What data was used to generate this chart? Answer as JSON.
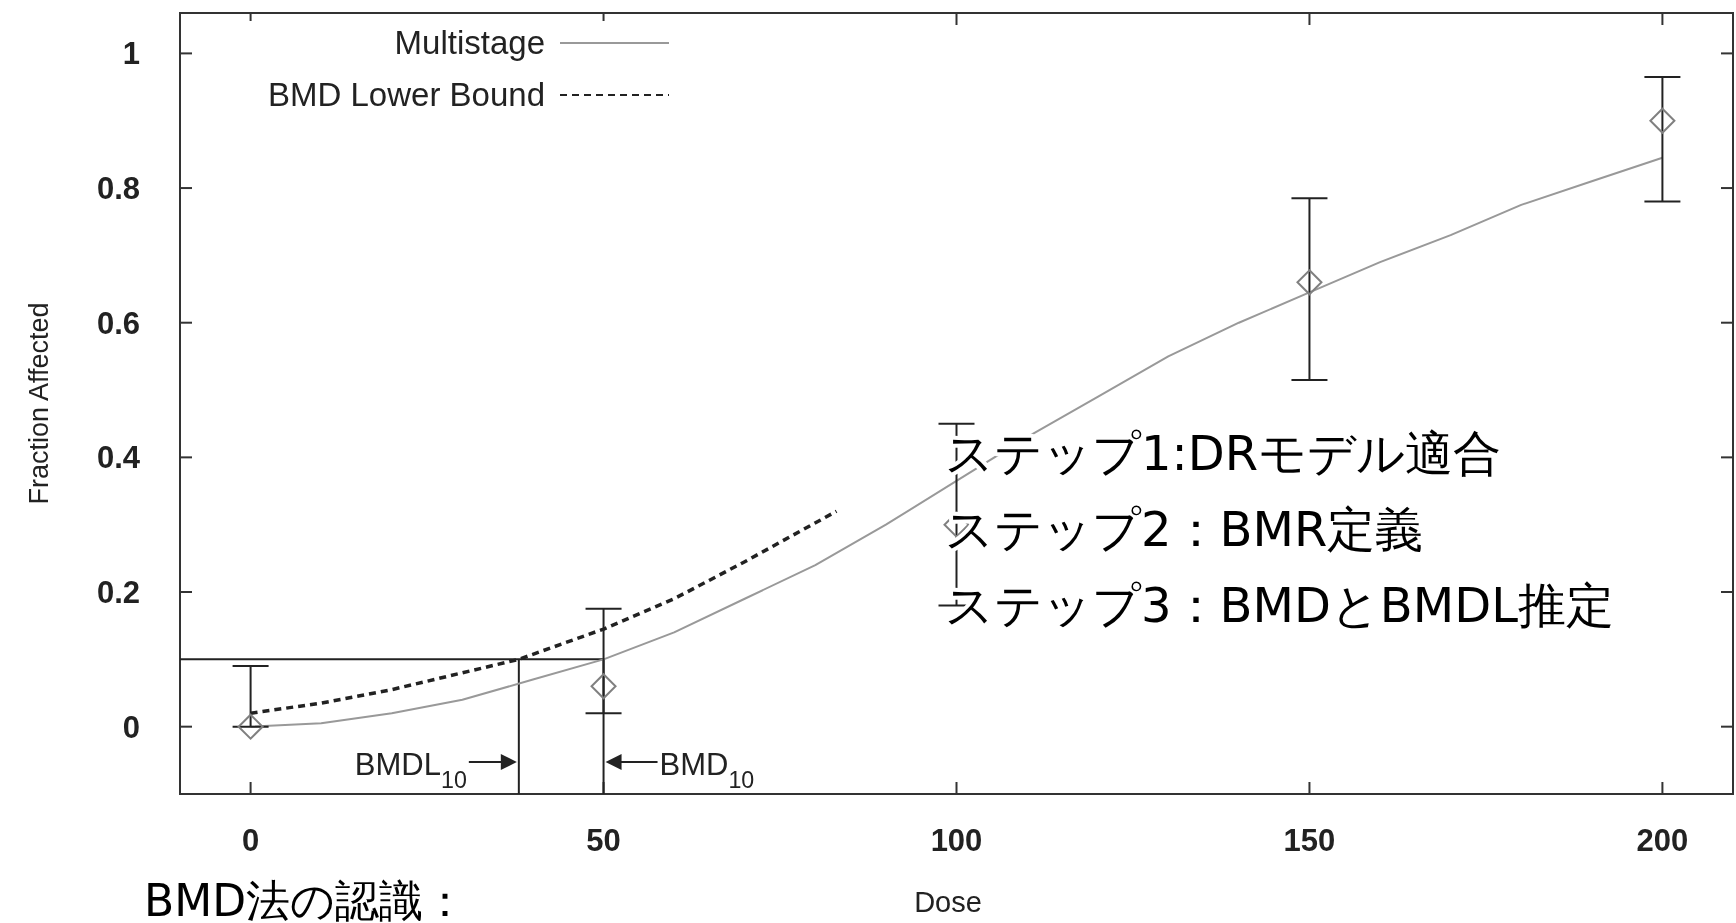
{
  "chart_data": {
    "type": "line",
    "xlabel": "Dose",
    "ylabel": "Fraction Affected",
    "xlim": [
      -10,
      210
    ],
    "ylim": [
      -0.1,
      1.06
    ],
    "xticks": [
      0,
      50,
      100,
      150,
      200
    ],
    "yticks": [
      0,
      0.2,
      0.4,
      0.6,
      0.8,
      1
    ],
    "legend": "top left",
    "grid": false,
    "series": [
      {
        "name": "Multistage",
        "line_style": "solid",
        "marker": "none",
        "color": "#999999",
        "x": [
          0,
          10,
          20,
          30,
          40,
          50,
          60,
          70,
          80,
          90,
          100,
          110,
          120,
          130,
          140,
          150,
          160,
          170,
          180,
          190,
          200
        ],
        "values": [
          0,
          0.005,
          0.02,
          0.04,
          0.07,
          0.1,
          0.14,
          0.19,
          0.24,
          0.3,
          0.365,
          0.43,
          0.49,
          0.55,
          0.6,
          0.645,
          0.69,
          0.73,
          0.775,
          0.81,
          0.845
        ]
      },
      {
        "name": "BMD Lower Bound",
        "line_style": "dashed",
        "marker": "none",
        "color": "#222222",
        "x": [
          0,
          10,
          20,
          30,
          38,
          50,
          60,
          70,
          83
        ],
        "values": [
          0.02,
          0.035,
          0.055,
          0.08,
          0.1,
          0.145,
          0.19,
          0.245,
          0.32
        ]
      },
      {
        "type": "scatter",
        "marker": "diamond",
        "color": "#808080",
        "x": [
          0,
          50,
          100,
          150,
          200
        ],
        "values": [
          0,
          0.06,
          0.3,
          0.66,
          0.9
        ],
        "errors": [
          [
            0,
            0.09
          ],
          [
            0.02,
            0.175
          ],
          [
            0.18,
            0.45
          ],
          [
            0.515,
            0.785
          ],
          [
            0.78,
            0.965
          ]
        ]
      }
    ],
    "ref_lines": [
      {
        "axis": "y",
        "value": 0.1,
        "color": "#222222"
      },
      {
        "axis": "x",
        "value": 38,
        "label": "BMDL$_{10}$",
        "color": "#222222"
      },
      {
        "axis": "x",
        "value": 50,
        "label": "BMD$_{10}$",
        "color": "#222222"
      }
    ],
    "annotations": [
      "BMD法の認識：",
      "ステップ1:DRモデル適合",
      "ステップ2：BMR定義",
      "ステップ3：BMDとBMDL推定"
    ]
  }
}
